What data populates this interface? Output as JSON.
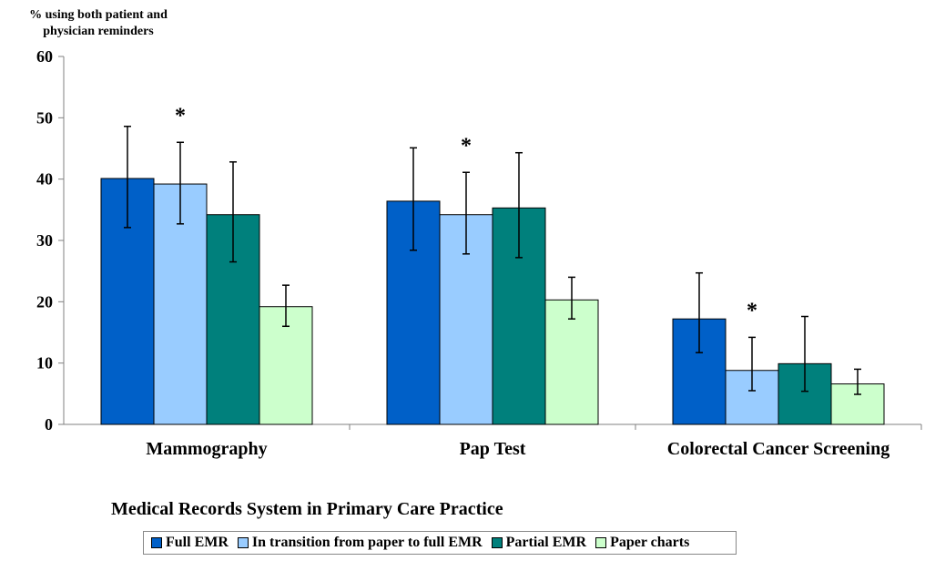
{
  "chart_data": {
    "type": "bar",
    "ylabel": "% using both patient and physician reminders",
    "xlabel": "Medical Records System in Primary Care Practice",
    "ylim": [
      0,
      60
    ],
    "yticks": [
      0,
      10,
      20,
      30,
      40,
      50,
      60
    ],
    "categories": [
      "Mammography",
      "Pap Test",
      "Colorectal Cancer Screening"
    ],
    "series": [
      {
        "name": "Full EMR",
        "color": "#0060c8",
        "values": [
          40.1,
          36.4,
          17.2
        ],
        "error_low": [
          32.1,
          28.4,
          11.7
        ],
        "error_high": [
          48.6,
          45.1,
          24.7
        ]
      },
      {
        "name": "In transition from paper to full EMR",
        "color": "#99ccff",
        "values": [
          39.2,
          34.2,
          8.8
        ],
        "error_low": [
          32.7,
          27.8,
          5.5
        ],
        "error_high": [
          46.0,
          41.1,
          14.2
        ]
      },
      {
        "name": "Partial EMR",
        "color": "#00807c",
        "values": [
          34.2,
          35.3,
          9.9
        ],
        "error_low": [
          26.5,
          27.2,
          5.4
        ],
        "error_high": [
          42.8,
          44.3,
          17.6
        ]
      },
      {
        "name": "Paper charts",
        "color": "#ccffcc",
        "values": [
          19.2,
          20.3,
          6.6
        ],
        "error_low": [
          16.0,
          17.2,
          4.9
        ],
        "error_high": [
          22.7,
          24.0,
          9.0
        ]
      }
    ],
    "annotations": [
      {
        "text": "*",
        "category": 0,
        "series": 1
      },
      {
        "text": "*",
        "category": 1,
        "series": 1
      },
      {
        "text": "*",
        "category": 2,
        "series": 1
      }
    ],
    "grid": false
  }
}
